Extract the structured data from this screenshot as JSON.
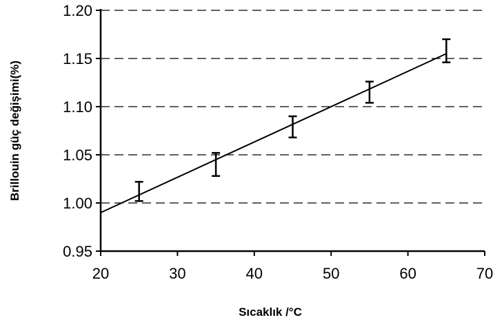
{
  "chart_data": {
    "type": "scatter",
    "title": "",
    "xlabel": "Sıcaklık /°C",
    "ylabel": "Brillouin güç değişimi(%)",
    "xlim": [
      20,
      70
    ],
    "ylim": [
      0.95,
      1.2
    ],
    "x_ticks": [
      "20",
      "30",
      "40",
      "50",
      "60",
      "70"
    ],
    "y_ticks": [
      "0.95",
      "1.00",
      "1.05",
      "1.10",
      "1.15",
      "1.20"
    ],
    "grid": "horizontal-dashed",
    "series": [
      {
        "x": [
          25,
          35,
          45,
          55,
          65
        ],
        "y": [
          1.012,
          1.04,
          1.079,
          1.115,
          1.158
        ],
        "error": [
          0.01,
          0.012,
          0.011,
          0.011,
          0.012
        ]
      }
    ],
    "trendline": {
      "x": [
        20,
        65
      ],
      "y": [
        0.99,
        1.155
      ]
    },
    "colors": {
      "line": "#000000",
      "grid": "#000000"
    }
  }
}
